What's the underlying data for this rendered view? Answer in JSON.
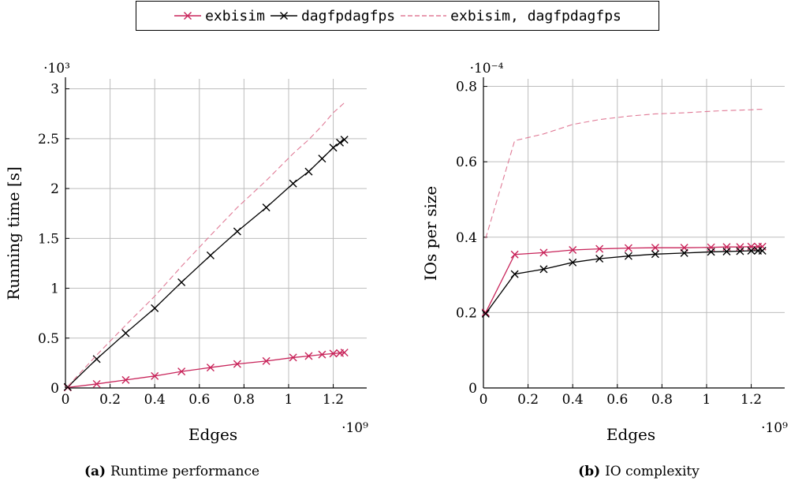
{
  "legend": [
    {
      "label": "exbisim",
      "color": "#c8245a",
      "marker": "x",
      "dash": false
    },
    {
      "label": "dagfpdagfps",
      "color": "#000000",
      "marker": "x",
      "dash": false
    },
    {
      "label": "exbisim, dagfpdagfps",
      "color": "#e07a96",
      "marker": "none",
      "dash": true
    }
  ],
  "colors": {
    "exbisim": "#c8245a",
    "dagfpdagfps": "#000000",
    "combined": "#e07a96",
    "grid": "#bdbdbd"
  },
  "chart_data": [
    {
      "type": "line",
      "caption_tag": "(a)",
      "caption_text": "Runtime performance",
      "xlabel": "Edges",
      "ylabel": "Running time [s]",
      "x_multiplier": "·10⁹",
      "y_multiplier": "·10³",
      "xlim": [
        0,
        1.35
      ],
      "ylim": [
        0,
        3.1
      ],
      "xticks": [
        0,
        0.2,
        0.4,
        0.6,
        0.8,
        1,
        1.2
      ],
      "xtick_labels": [
        "0",
        "0.2",
        "0.4",
        "0.6",
        "0.8",
        "1",
        "1.2"
      ],
      "yticks": [
        0,
        0.5,
        1,
        1.5,
        2,
        2.5,
        3
      ],
      "ytick_labels": [
        "0",
        "0.5",
        "1",
        "1.5",
        "2",
        "2.5",
        "3"
      ],
      "grid": true,
      "series": [
        {
          "name": "exbisim",
          "key": "exbisim",
          "marker": "x",
          "dash": false,
          "x": [
            0.01,
            0.14,
            0.27,
            0.4,
            0.52,
            0.65,
            0.77,
            0.9,
            1.02,
            1.09,
            1.15,
            1.2,
            1.23,
            1.25
          ],
          "y": [
            0.005,
            0.04,
            0.08,
            0.12,
            0.165,
            0.205,
            0.24,
            0.27,
            0.305,
            0.32,
            0.335,
            0.345,
            0.35,
            0.355
          ]
        },
        {
          "name": "dagfpdagfps",
          "key": "dagfpdagfps",
          "marker": "x",
          "dash": false,
          "x": [
            0.01,
            0.14,
            0.27,
            0.4,
            0.52,
            0.65,
            0.77,
            0.9,
            1.02,
            1.09,
            1.15,
            1.2,
            1.23,
            1.25
          ],
          "y": [
            0.01,
            0.29,
            0.55,
            0.8,
            1.06,
            1.33,
            1.57,
            1.81,
            2.05,
            2.17,
            2.3,
            2.41,
            2.46,
            2.49
          ]
        },
        {
          "name": "exbisim, dagfpdagfps",
          "key": "combined",
          "marker": "none",
          "dash": true,
          "x": [
            0.01,
            0.14,
            0.27,
            0.4,
            0.52,
            0.65,
            0.77,
            0.9,
            1.02,
            1.09,
            1.15,
            1.2,
            1.23,
            1.25
          ],
          "y": [
            0.015,
            0.33,
            0.63,
            0.92,
            1.22,
            1.53,
            1.81,
            2.08,
            2.35,
            2.49,
            2.63,
            2.76,
            2.82,
            2.86
          ]
        }
      ]
    },
    {
      "type": "line",
      "caption_tag": "(b)",
      "caption_text": "IO complexity",
      "xlabel": "Edges",
      "ylabel": "IOs per size",
      "x_multiplier": "·10⁹",
      "y_multiplier": "·10⁻⁴",
      "xlim": [
        0,
        1.35
      ],
      "ylim": [
        0,
        0.82
      ],
      "xticks": [
        0,
        0.2,
        0.4,
        0.6,
        0.8,
        1,
        1.2
      ],
      "xtick_labels": [
        "0",
        "0.2",
        "0.4",
        "0.6",
        "0.8",
        "1",
        "1.2"
      ],
      "yticks": [
        0,
        0.2,
        0.4,
        0.6,
        0.8
      ],
      "ytick_labels": [
        "0",
        "0.2",
        "0.4",
        "0.6",
        "0.8"
      ],
      "grid": true,
      "series": [
        {
          "name": "exbisim",
          "key": "exbisim",
          "marker": "x",
          "dash": false,
          "x": [
            0.01,
            0.14,
            0.27,
            0.4,
            0.52,
            0.65,
            0.77,
            0.9,
            1.02,
            1.09,
            1.15,
            1.2,
            1.23,
            1.25
          ],
          "y": [
            0.2,
            0.354,
            0.359,
            0.366,
            0.369,
            0.371,
            0.372,
            0.372,
            0.373,
            0.374,
            0.374,
            0.375,
            0.375,
            0.375
          ]
        },
        {
          "name": "dagfpdagfps",
          "key": "dagfpdagfps",
          "marker": "x",
          "dash": false,
          "x": [
            0.01,
            0.14,
            0.27,
            0.4,
            0.52,
            0.65,
            0.77,
            0.9,
            1.02,
            1.09,
            1.15,
            1.2,
            1.23,
            1.25
          ],
          "y": [
            0.197,
            0.302,
            0.315,
            0.333,
            0.343,
            0.35,
            0.355,
            0.358,
            0.361,
            0.362,
            0.363,
            0.364,
            0.364,
            0.364
          ]
        },
        {
          "name": "exbisim, dagfpdagfps",
          "key": "combined",
          "marker": "none",
          "dash": true,
          "x": [
            0.01,
            0.14,
            0.27,
            0.4,
            0.52,
            0.65,
            0.77,
            0.9,
            1.02,
            1.09,
            1.15,
            1.2,
            1.23,
            1.25
          ],
          "y": [
            0.397,
            0.656,
            0.674,
            0.699,
            0.712,
            0.721,
            0.727,
            0.73,
            0.734,
            0.736,
            0.737,
            0.738,
            0.739,
            0.739
          ]
        }
      ]
    }
  ]
}
